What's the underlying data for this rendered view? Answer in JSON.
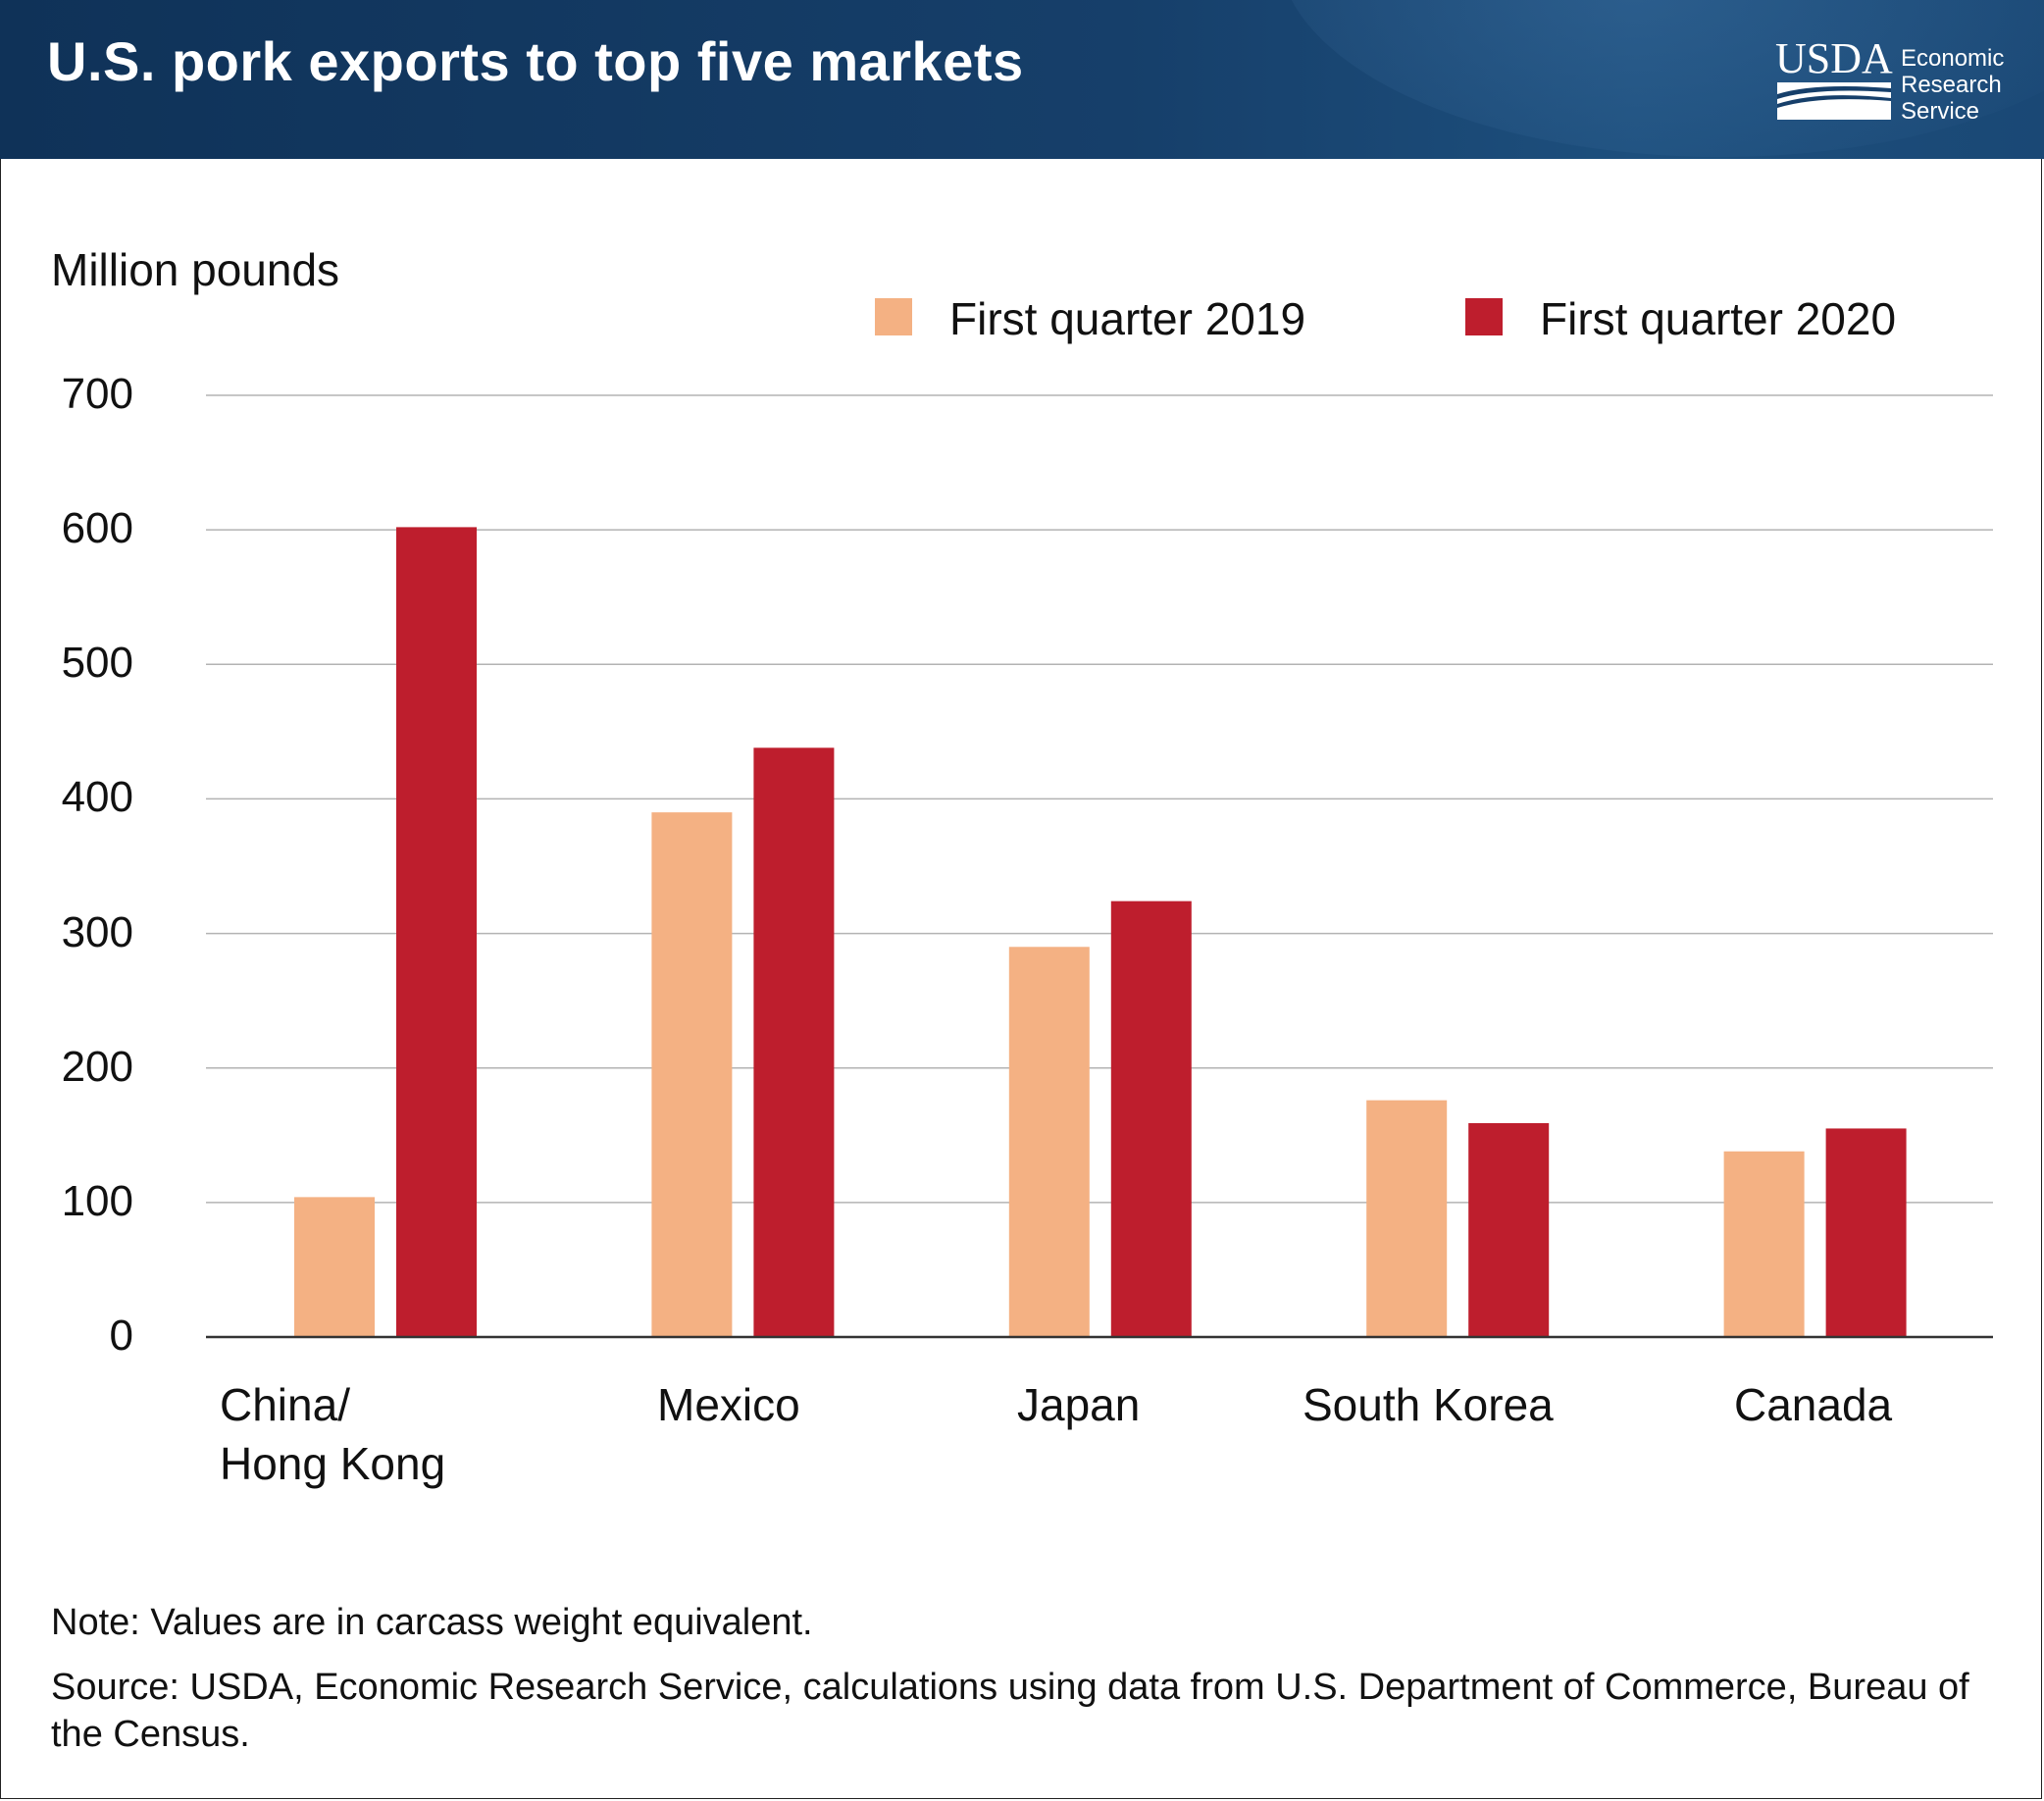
{
  "header": {
    "title": "U.S. pork exports to top five markets",
    "logo_mark": "USDA",
    "logo_lines": [
      "Economic",
      "Research",
      "Service"
    ]
  },
  "colors": {
    "header_bg": "#163f6a",
    "series_2019": "#f4b183",
    "series_2020": "#be1e2d",
    "grid": "#b3b3b3",
    "axis": "#333333"
  },
  "chart_data": {
    "type": "bar",
    "title": "U.S. pork exports to top five markets",
    "ylabel": "Million pounds",
    "xlabel": "",
    "ylim": [
      0,
      700
    ],
    "yticks": [
      0,
      100,
      200,
      300,
      400,
      500,
      600,
      700
    ],
    "grid": true,
    "legend_position": "top-right",
    "categories": [
      "China/\nHong Kong",
      "Mexico",
      "Japan",
      "South Korea",
      "Canada"
    ],
    "series": [
      {
        "name": "First quarter 2019",
        "color": "#f4b183",
        "values": [
          104,
          390,
          290,
          176,
          138
        ]
      },
      {
        "name": "First quarter 2020",
        "color": "#be1e2d",
        "values": [
          602,
          438,
          324,
          159,
          155
        ]
      }
    ]
  },
  "footer": {
    "note": "Note: Values are in carcass weight equivalent.",
    "source": "Source: USDA, Economic Research Service, calculations using data from U.S. Department of Commerce, Bureau of the Census."
  }
}
